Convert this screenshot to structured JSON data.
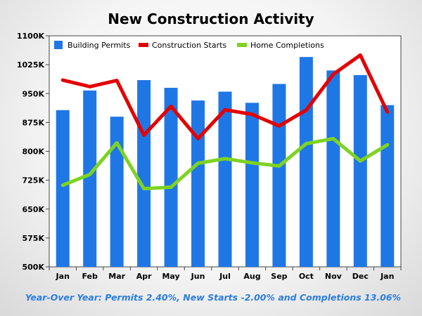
{
  "chart_data": {
    "type": "bar",
    "title": "New Construction Activity",
    "xlabel": "",
    "ylabel": "",
    "categories": [
      "Jan",
      "Feb",
      "Mar",
      "Apr",
      "May",
      "Jun",
      "Jul",
      "Aug",
      "Sep",
      "Oct",
      "Nov",
      "Dec",
      "Jan"
    ],
    "ylim": [
      500,
      1100
    ],
    "y_ticks": [
      500,
      575,
      650,
      725,
      800,
      875,
      950,
      1025,
      1100
    ],
    "y_tick_labels": [
      "500K",
      "575K",
      "650K",
      "725K",
      "800K",
      "875K",
      "950K",
      "1025K",
      "1100K"
    ],
    "grid": false,
    "legend_position": "top",
    "series": [
      {
        "name": "Building Permits",
        "type": "bar",
        "color": "#1f77e6",
        "values": [
          907,
          958,
          890,
          985,
          965,
          932,
          955,
          926,
          975,
          1045,
          1010,
          998,
          920
        ]
      },
      {
        "name": "Construction Starts",
        "type": "line",
        "color": "#e30000",
        "values": [
          985,
          968,
          984,
          842,
          917,
          833,
          908,
          896,
          866,
          907,
          1000,
          1050,
          902
        ]
      },
      {
        "name": "Home Completions",
        "type": "line",
        "color": "#7ed321",
        "values": [
          712,
          740,
          822,
          703,
          707,
          769,
          781,
          770,
          762,
          820,
          833,
          775,
          817
        ]
      }
    ],
    "footnote": "Year-Over Year: Permits 2.40%, New Starts -2.00% and Completions 13.06%",
    "footnote_color": "#2a7de1"
  }
}
